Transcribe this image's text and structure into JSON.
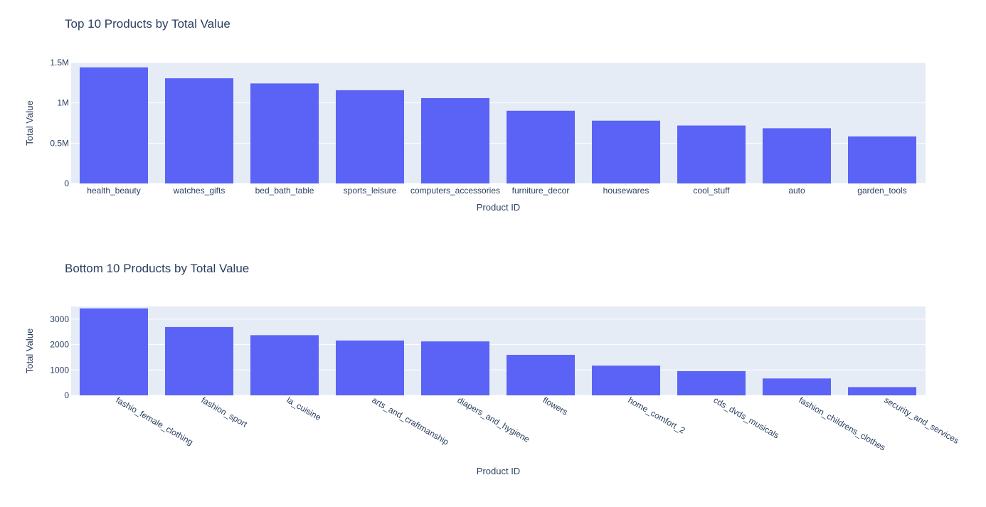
{
  "chart_data": [
    {
      "type": "bar",
      "title": "Top 10 Products by Total Value",
      "xlabel": "Product ID",
      "ylabel": "Total Value",
      "ylim": [
        0,
        1500000
      ],
      "yticks": [
        0,
        500000,
        1000000,
        1500000
      ],
      "ytick_labels": [
        "0",
        "0.5M",
        "1M",
        "1.5M"
      ],
      "categories": [
        "health_beauty",
        "watches_gifts",
        "bed_bath_table",
        "sports_leisure",
        "computers_accessories",
        "furniture_decor",
        "housewares",
        "cool_stuff",
        "auto",
        "garden_tools"
      ],
      "values": [
        1441000,
        1305000,
        1241000,
        1157000,
        1059000,
        902000,
        779000,
        719000,
        685000,
        584000
      ],
      "bar_color": "#5a63f5",
      "tick_rotation": 0
    },
    {
      "type": "bar",
      "title": "Bottom 10 Products by Total Value",
      "xlabel": "Product ID",
      "ylabel": "Total Value",
      "ylim": [
        0,
        3500
      ],
      "yticks": [
        0,
        1000,
        2000,
        3000
      ],
      "ytick_labels": [
        "0",
        "1000",
        "2000",
        "3000"
      ],
      "categories": [
        "fashio_female_clothing",
        "fashion_sport",
        "la_cuisine",
        "arts_and_craftmanship",
        "diapers_and_hygiene",
        "flowers",
        "home_comfort_2",
        "cds_dvds_musicals",
        "fashion_childrens_clothes",
        "security_and_services"
      ],
      "values": [
        3425,
        2690,
        2370,
        2160,
        2125,
        1595,
        1170,
        955,
        665,
        325
      ],
      "bar_color": "#5a63f5",
      "tick_rotation": 30
    }
  ]
}
